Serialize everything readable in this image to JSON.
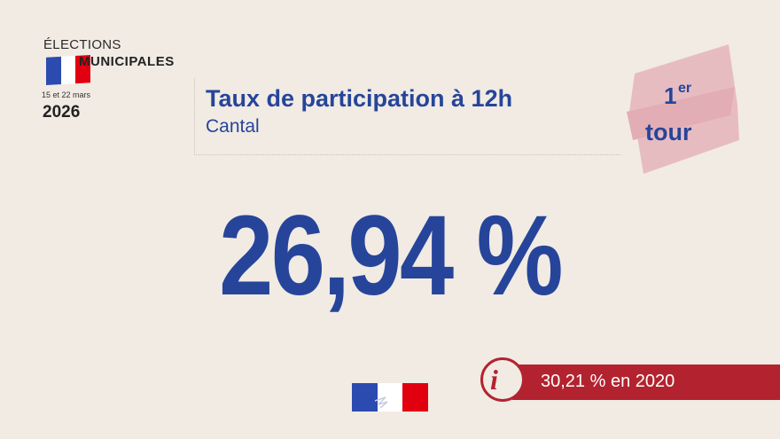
{
  "logo": {
    "line1": "ÉLECTIONS",
    "line2": "MUNICIPALES",
    "dates": "15 et 22 mars",
    "year": "2026",
    "flag_colors": [
      "#2b4bb0",
      "#ffffff",
      "#e1000f"
    ]
  },
  "header": {
    "title": "Taux de participation à 12h",
    "subtitle": "Cantal"
  },
  "round_badge": {
    "number": "1",
    "superscript": "er",
    "word": "tour",
    "color": "#e7bcc1"
  },
  "main_value": "26,94 %",
  "info_banner": {
    "text": "30,21 % en 2020",
    "icon": "info-icon",
    "color": "#b3232f"
  },
  "colors": {
    "primary_blue": "#26459a",
    "background": "#f1ebe4"
  }
}
